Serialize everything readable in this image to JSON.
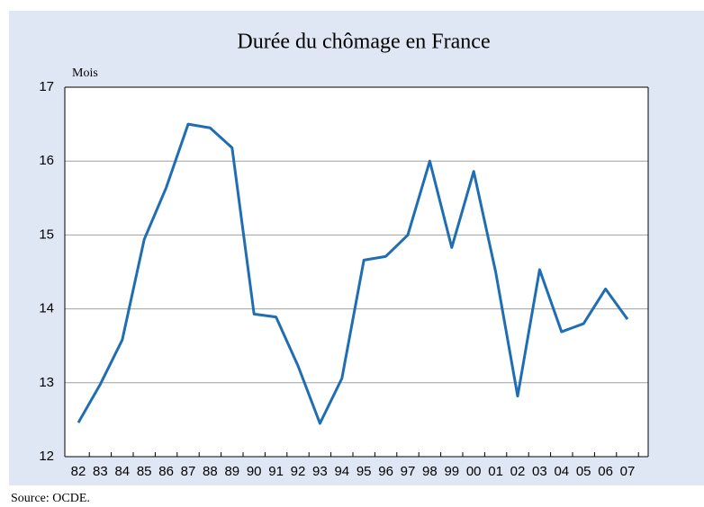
{
  "chart_data": {
    "type": "line",
    "title": "Durée du chômage en France",
    "y_label": "Mois",
    "source": "Source: OCDE.",
    "categories": [
      "82",
      "83",
      "84",
      "85",
      "86",
      "87",
      "88",
      "89",
      "90",
      "91",
      "92",
      "93",
      "94",
      "95",
      "96",
      "97",
      "98",
      "99",
      "00",
      "01",
      "02",
      "03",
      "04",
      "05",
      "06",
      "07"
    ],
    "series": [
      {
        "name": "Durée du chômage",
        "color": "#1f6db3",
        "values": [
          12.46,
          12.98,
          13.58,
          14.94,
          15.64,
          16.5,
          16.45,
          16.18,
          13.93,
          13.89,
          13.23,
          12.45,
          13.06,
          14.66,
          14.71,
          15.0,
          16.0,
          14.83,
          15.86,
          14.5,
          12.82,
          14.53,
          13.69,
          13.8,
          14.27,
          13.86
        ]
      }
    ],
    "ylim": [
      12,
      17
    ],
    "yticks": [
      12,
      13,
      14,
      15,
      16,
      17
    ],
    "grid": true
  }
}
